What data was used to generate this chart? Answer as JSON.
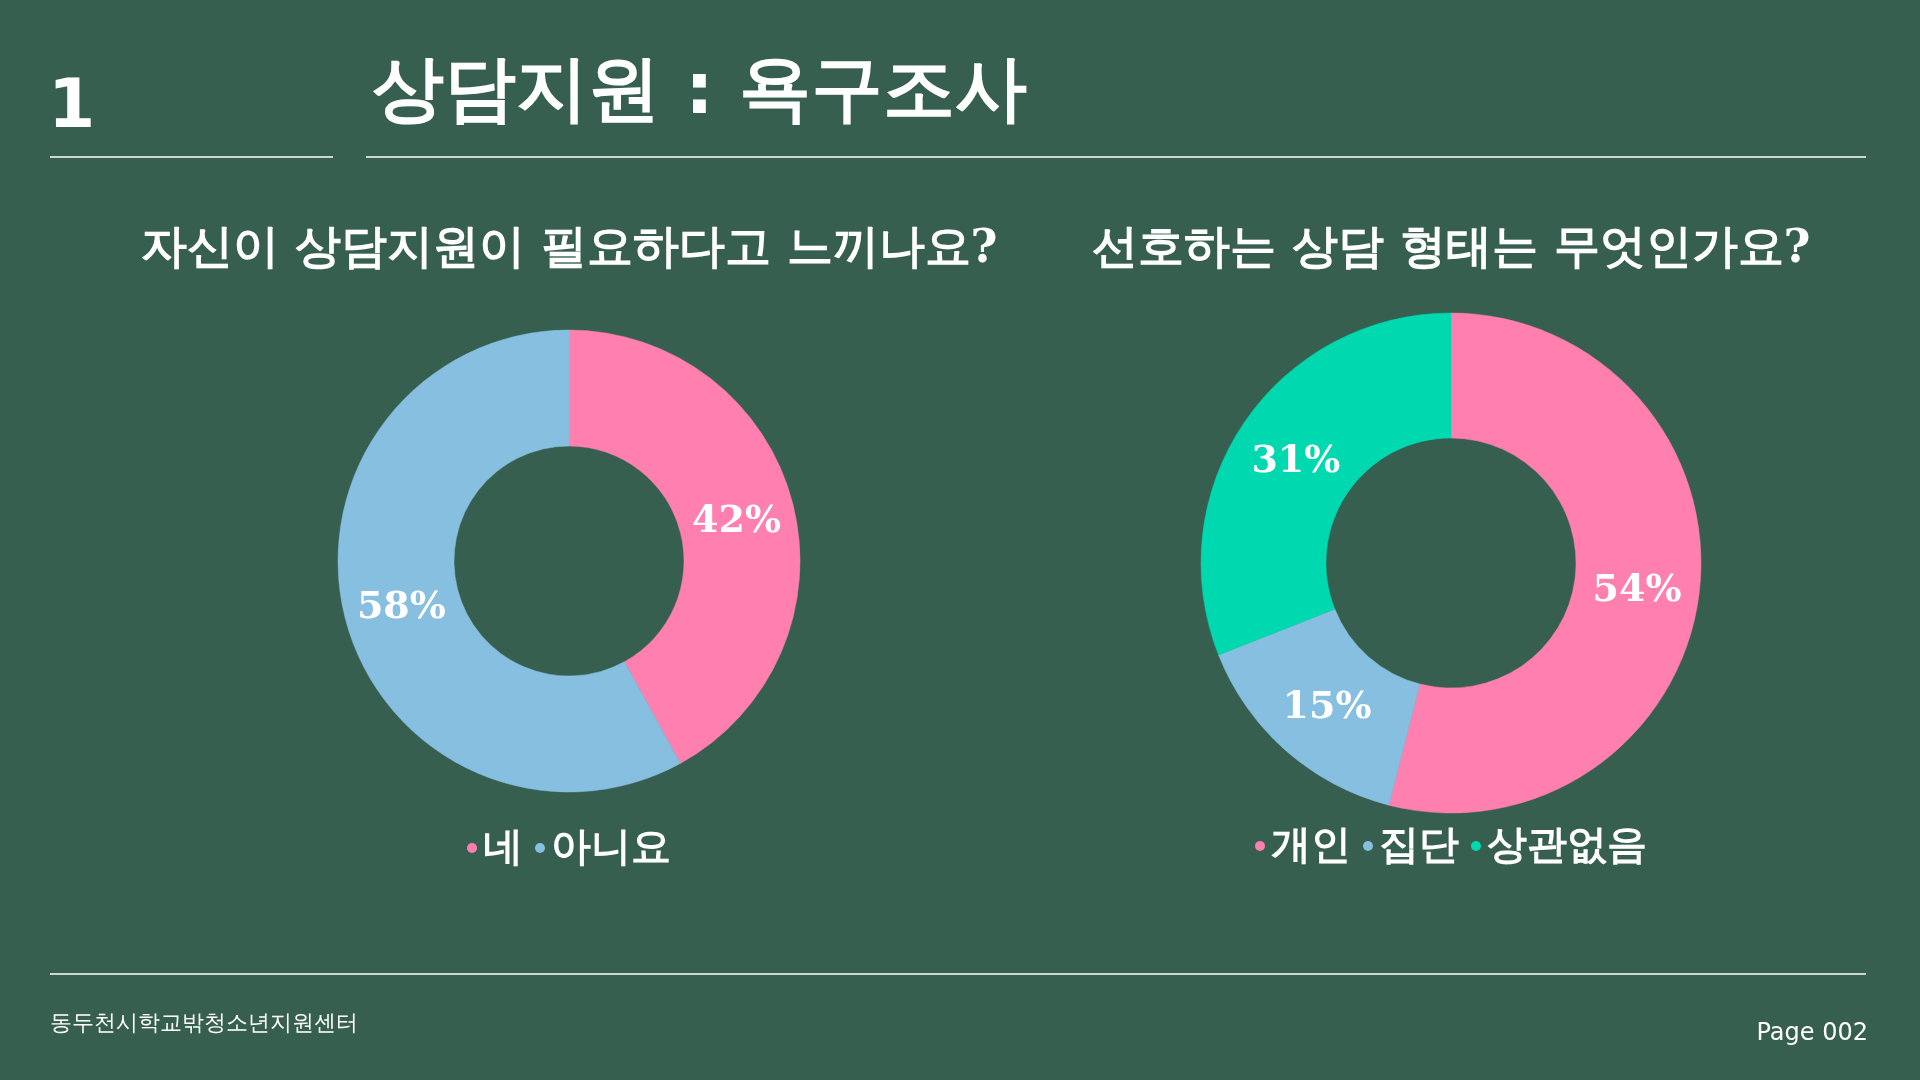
{
  "chart_data": [
    {
      "type": "donut",
      "title": "자신이 상담지원이 필요하다고 느끼나요?",
      "categories": [
        "네",
        "아니요"
      ],
      "values": [
        42,
        58
      ],
      "colors": [
        "#ff80ae",
        "#86bfe0"
      ],
      "value_labels": [
        "42%",
        "58%"
      ],
      "legend": "bottom",
      "annotations": [
        "1",
        "상담지원 : 욕구조사",
        "동두천시학교밖청소년지원센터",
        "Page 002"
      ]
    },
    {
      "type": "donut",
      "title": "선호하는 상담 형태는 무엇인가요?",
      "categories": [
        "개인",
        "집단",
        "상관없음"
      ],
      "values": [
        54,
        15,
        31
      ],
      "colors": [
        "#ff80ae",
        "#86bfe0",
        "#00d9b0"
      ],
      "value_labels": [
        "54%",
        "15%",
        "31%"
      ],
      "legend": "bottom"
    }
  ]
}
